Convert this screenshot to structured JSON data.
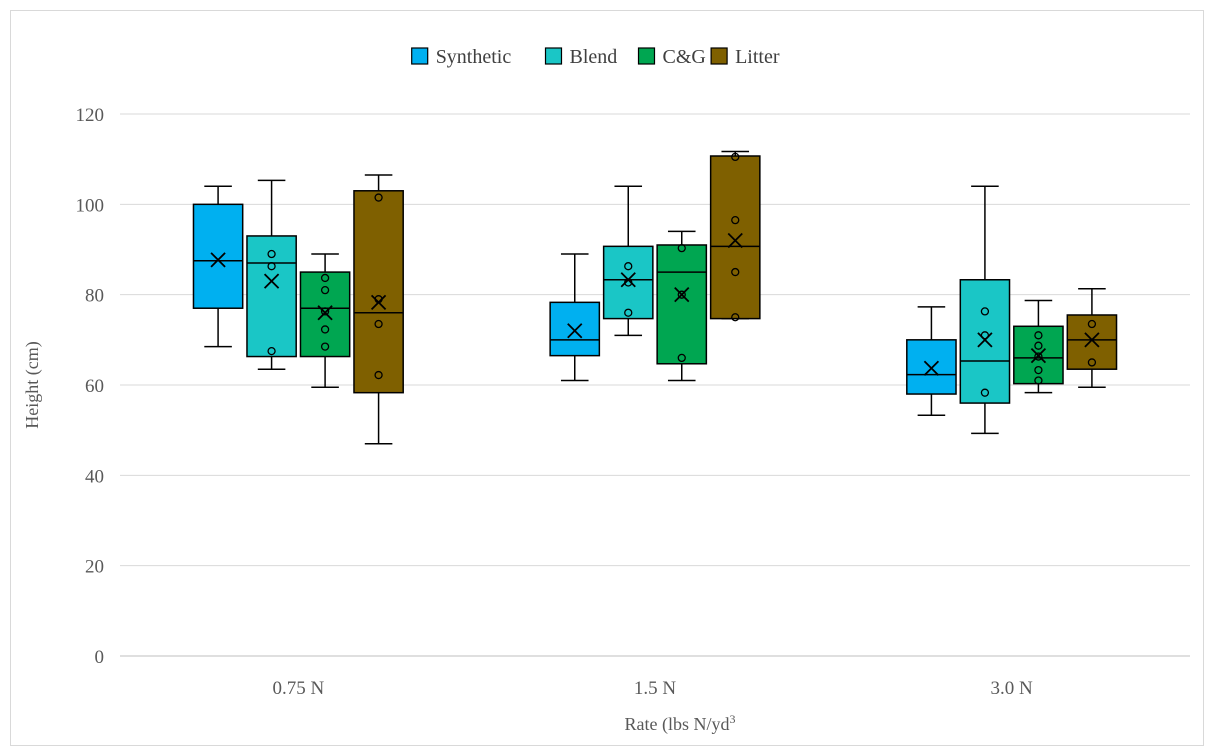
{
  "chart_data": {
    "type": "box",
    "title": "",
    "xlabel": "Rate (lbs N/yd",
    "xlabel_sup": "3",
    "ylabel": "Height (cm)",
    "ylim": [
      0,
      120
    ],
    "yticks": [
      0,
      20,
      40,
      60,
      80,
      100,
      120
    ],
    "grid": true,
    "legend_position": "top",
    "categories": [
      "0.75 N",
      "1.5 N",
      "3.0 N"
    ],
    "series": [
      {
        "name": "Synthetic",
        "color": "#00b0f0",
        "boxes": [
          {
            "whisker_low": 68.5,
            "q1": 77,
            "median": 87.5,
            "q3": 100,
            "whisker_high": 104,
            "mean": 87.7,
            "outliers": []
          },
          {
            "whisker_low": 61,
            "q1": 66.5,
            "median": 70,
            "q3": 78.3,
            "whisker_high": 89,
            "mean": 72,
            "outliers": []
          },
          {
            "whisker_low": 53.3,
            "q1": 58,
            "median": 62.3,
            "q3": 70,
            "whisker_high": 77.3,
            "mean": 63.7,
            "outliers": []
          }
        ]
      },
      {
        "name": "Blend",
        "color": "#1ac6c6",
        "boxes": [
          {
            "whisker_low": 63.5,
            "q1": 66.3,
            "median": 87,
            "q3": 93,
            "whisker_high": 105.3,
            "mean": 83,
            "outliers": [
              89,
              86.3,
              67.5
            ]
          },
          {
            "whisker_low": 71,
            "q1": 74.7,
            "median": 83.3,
            "q3": 90.7,
            "whisker_high": 104,
            "mean": 83.3,
            "outliers": [
              86.3,
              82.7,
              76
            ]
          },
          {
            "whisker_low": 49.3,
            "q1": 56,
            "median": 65.3,
            "q3": 83.3,
            "whisker_high": 104,
            "mean": 70,
            "outliers": [
              76.3,
              71,
              58.3
            ]
          }
        ]
      },
      {
        "name": "C&G",
        "color": "#00a651",
        "boxes": [
          {
            "whisker_low": 59.5,
            "q1": 66.3,
            "median": 77,
            "q3": 85,
            "whisker_high": 89,
            "mean": 76,
            "outliers": [
              83.7,
              81,
              76.3,
              72.3,
              68.5
            ]
          },
          {
            "whisker_low": 61,
            "q1": 64.7,
            "median": 85,
            "q3": 91,
            "whisker_high": 94,
            "mean": 80,
            "outliers": [
              90.3,
              80,
              66
            ]
          },
          {
            "whisker_low": 58.3,
            "q1": 60.3,
            "median": 66,
            "q3": 73,
            "whisker_high": 78.7,
            "mean": 66.5,
            "outliers": [
              71,
              68.7,
              66.3,
              63.3,
              61
            ]
          }
        ]
      },
      {
        "name": "Litter",
        "color": "#7f6000",
        "boxes": [
          {
            "whisker_low": 47,
            "q1": 58.3,
            "median": 76,
            "q3": 103,
            "whisker_high": 106.5,
            "mean": 78.3,
            "outliers": [
              101.5,
              79,
              73.5,
              62.2
            ]
          },
          {
            "whisker_low": 74.7,
            "q1": 74.7,
            "median": 90.7,
            "q3": 110.7,
            "whisker_high": 111.7,
            "mean": 92,
            "outliers": [
              110.5,
              96.5,
              85,
              75
            ]
          },
          {
            "whisker_low": 59.5,
            "q1": 63.5,
            "median": 70,
            "q3": 75.5,
            "whisker_high": 81.3,
            "mean": 70,
            "outliers": [
              73.5,
              65
            ]
          }
        ]
      }
    ]
  }
}
